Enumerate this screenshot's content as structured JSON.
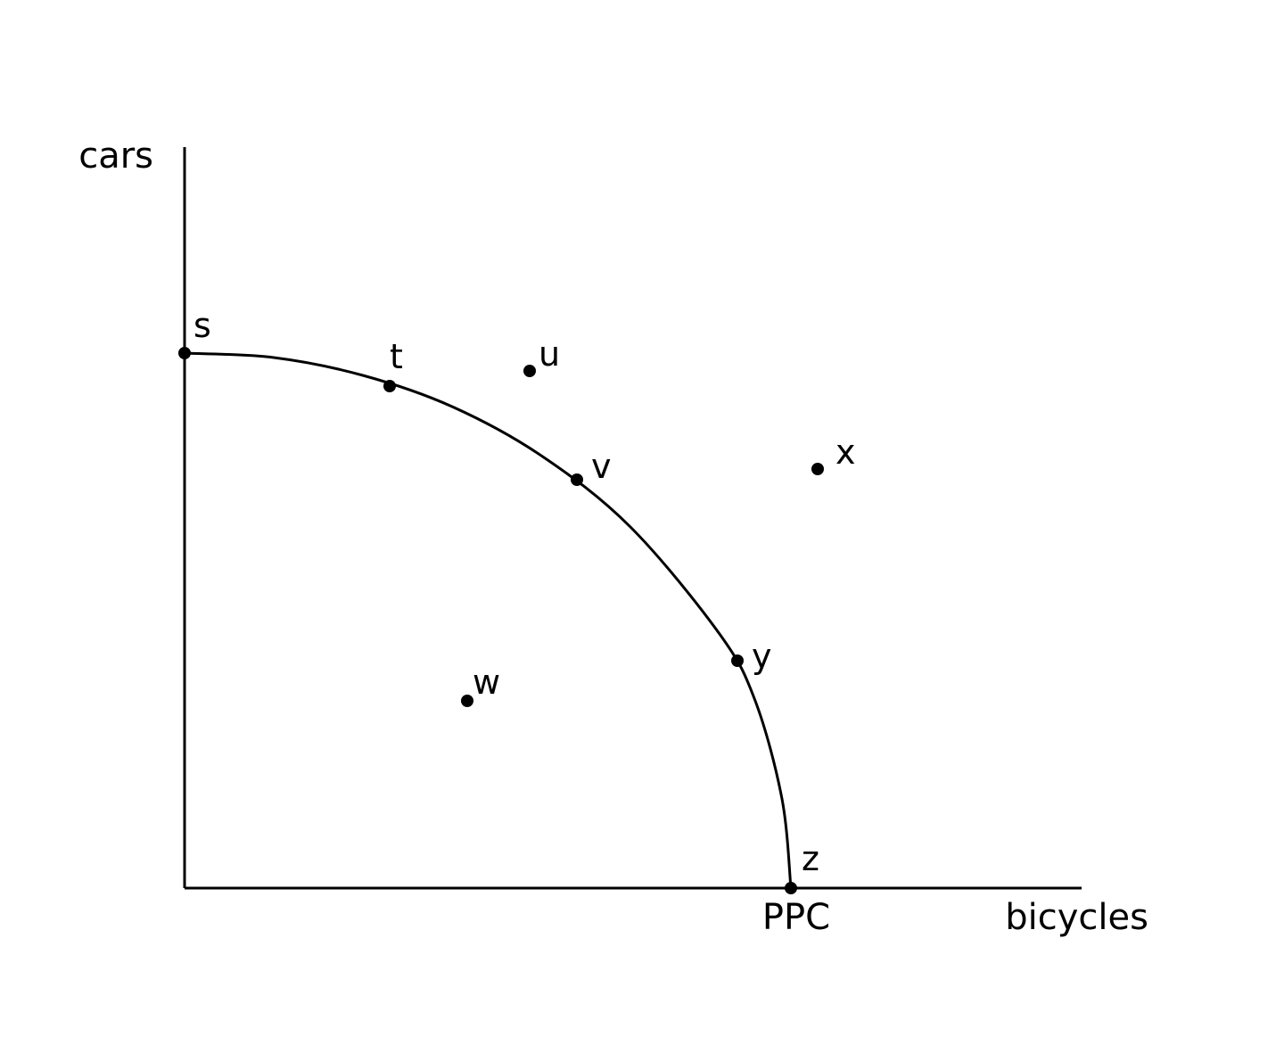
{
  "chart_data": {
    "type": "line",
    "title": "",
    "xlabel": "bicycles",
    "ylabel": "cars",
    "xlim": [
      0,
      10
    ],
    "ylim": [
      0,
      10
    ],
    "grid": false,
    "curve_label": "PPC",
    "series": [
      {
        "x": [
          0,
          1,
          2,
          3,
          4,
          5,
          6,
          6.4,
          6.7,
          6.8
        ],
        "y": [
          6,
          5.95,
          5.75,
          5.4,
          4.85,
          4.05,
          2.85,
          2.1,
          1.0,
          0
        ]
      }
    ],
    "points": [
      {
        "label": "s",
        "x": 0,
        "y": 6,
        "on_curve": true
      },
      {
        "label": "t",
        "x": 2.3,
        "y": 5.63,
        "on_curve": true
      },
      {
        "label": "u",
        "x": 3.87,
        "y": 5.8,
        "on_curve": false
      },
      {
        "label": "v",
        "x": 4.4,
        "y": 4.58,
        "on_curve": true
      },
      {
        "label": "x",
        "x": 7.1,
        "y": 4.7,
        "on_curve": false
      },
      {
        "label": "y",
        "x": 6.2,
        "y": 2.55,
        "on_curve": true
      },
      {
        "label": "w",
        "x": 3.17,
        "y": 2.1,
        "on_curve": false
      },
      {
        "label": "z",
        "x": 6.8,
        "y": 0,
        "on_curve": true
      }
    ]
  }
}
